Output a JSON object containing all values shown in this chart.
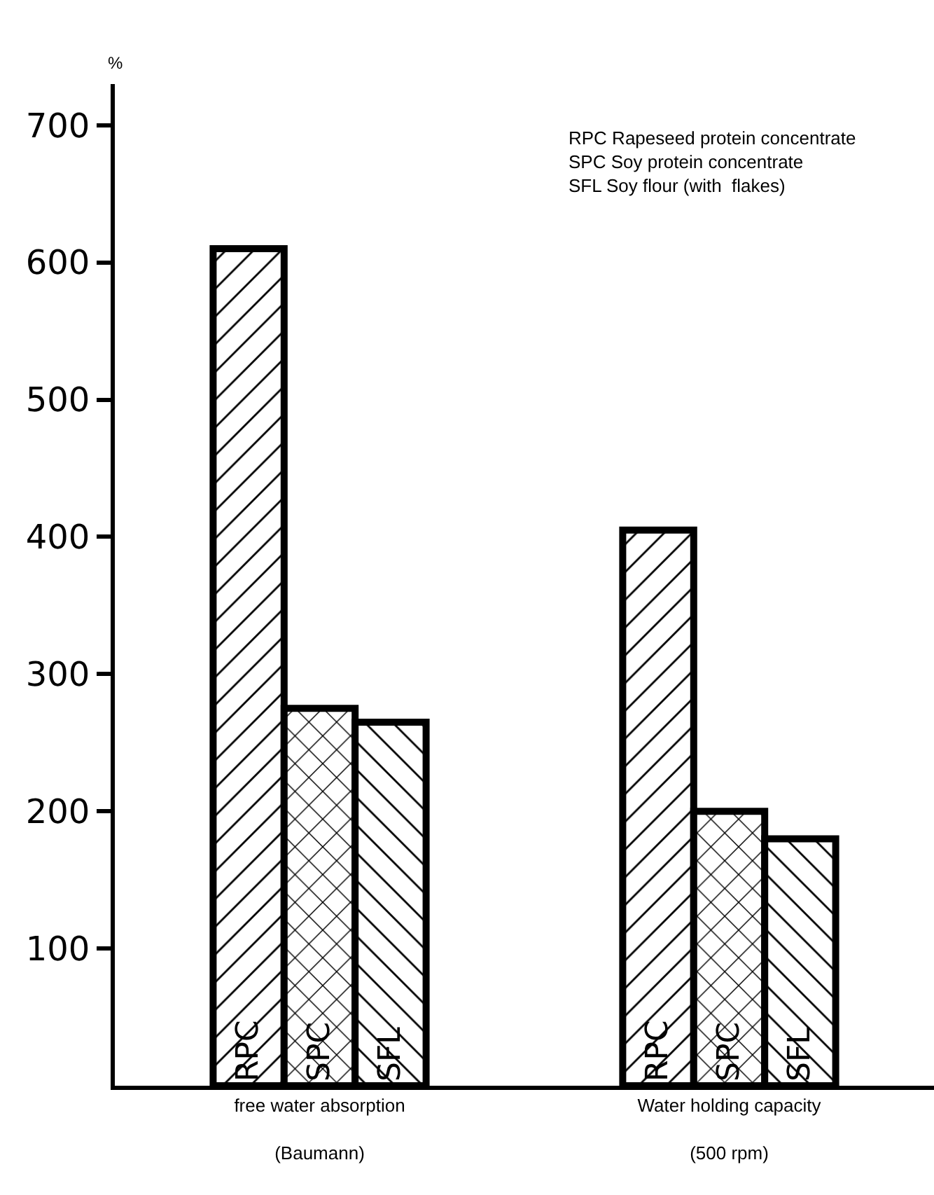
{
  "chart_data": {
    "type": "bar",
    "ylabel": "%",
    "categories": [
      "free water absorption\n(Baumann)",
      "Water holding capacity\n(500 rpm)"
    ],
    "series": [
      {
        "name": "RPC",
        "color": "#000000",
        "values": [
          610,
          405
        ]
      },
      {
        "name": "SPC",
        "color": "#000000",
        "values": [
          275,
          200
        ]
      },
      {
        "name": "SFL",
        "color": "#000000",
        "values": [
          265,
          180
        ]
      }
    ],
    "ylim": [
      0,
      730
    ],
    "yticks": [
      100,
      200,
      300,
      400,
      500,
      600,
      700
    ],
    "grid": false,
    "legend": false,
    "annotations": [
      "RPC Rapeseed protein concentrate\nSPC Soy protein concentrate\nSFL Soy flour (with  flakes)"
    ]
  }
}
